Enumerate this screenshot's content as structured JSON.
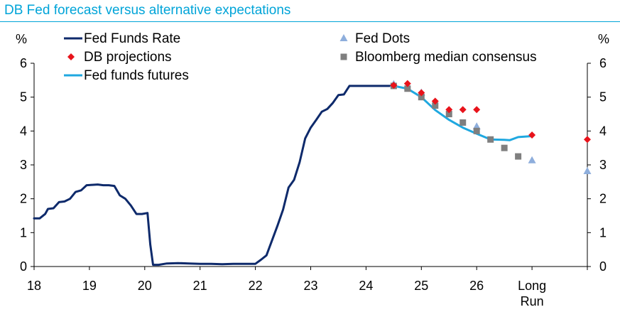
{
  "title": "DB Fed forecast versus alternative expectations",
  "chart_data": {
    "type": "line",
    "title": "DB Fed forecast versus alternative expectations",
    "left_axis_unit": "%",
    "right_axis_unit": "%",
    "y_ticks": [
      "0",
      "1",
      "2",
      "3",
      "4",
      "5",
      "6"
    ],
    "ylim": [
      0,
      6
    ],
    "x_ticks": [
      {
        "x": 18,
        "label": "18"
      },
      {
        "x": 19,
        "label": "19"
      },
      {
        "x": 20,
        "label": "20"
      },
      {
        "x": 21,
        "label": "21"
      },
      {
        "x": 22,
        "label": "22"
      },
      {
        "x": 23,
        "label": "23"
      },
      {
        "x": 24,
        "label": "24"
      },
      {
        "x": 25,
        "label": "25"
      },
      {
        "x": 26,
        "label": "26"
      },
      {
        "x": 27,
        "label": "Long Run"
      }
    ],
    "xlim": [
      18,
      28
    ],
    "grid": false,
    "legend": [
      {
        "name": "Fed Funds Rate",
        "marker": "line",
        "color": "#0e2a6b"
      },
      {
        "name": "Fed Dots",
        "marker": "triangle",
        "color": "#8eaedc"
      },
      {
        "name": "DB projections",
        "marker": "diamond",
        "color": "#e8131b"
      },
      {
        "name": "Bloomberg median consensus",
        "marker": "square",
        "color": "#7f7f7f"
      },
      {
        "name": "Fed funds futures",
        "marker": "line",
        "color": "#1fa8e0"
      }
    ],
    "series": [
      {
        "name": "Fed Funds Rate",
        "type": "line",
        "color": "#0e2a6b",
        "x": [
          18.0,
          18.1,
          18.2,
          18.25,
          18.35,
          18.45,
          18.55,
          18.65,
          18.75,
          18.85,
          18.95,
          19.05,
          19.15,
          19.25,
          19.35,
          19.45,
          19.55,
          19.65,
          19.75,
          19.85,
          19.95,
          20.05,
          20.1,
          20.15,
          20.25,
          20.4,
          20.6,
          20.8,
          21.0,
          21.2,
          21.4,
          21.6,
          21.8,
          22.0,
          22.1,
          22.2,
          22.3,
          22.4,
          22.5,
          22.6,
          22.7,
          22.8,
          22.9,
          23.0,
          23.1,
          23.2,
          23.3,
          23.4,
          23.5,
          23.6,
          23.7,
          23.9,
          24.1,
          24.3,
          24.5
        ],
        "y": [
          1.42,
          1.42,
          1.55,
          1.7,
          1.72,
          1.9,
          1.92,
          2.0,
          2.2,
          2.25,
          2.4,
          2.41,
          2.42,
          2.4,
          2.4,
          2.38,
          2.1,
          2.0,
          1.8,
          1.55,
          1.55,
          1.58,
          0.65,
          0.05,
          0.05,
          0.09,
          0.1,
          0.09,
          0.08,
          0.08,
          0.07,
          0.08,
          0.08,
          0.08,
          0.2,
          0.33,
          0.77,
          1.21,
          1.68,
          2.33,
          2.56,
          3.08,
          3.78,
          4.1,
          4.33,
          4.57,
          4.65,
          4.83,
          5.06,
          5.08,
          5.33,
          5.33,
          5.33,
          5.33,
          5.33
        ]
      },
      {
        "name": "Fed funds futures",
        "type": "line",
        "color": "#1fa8e0",
        "x": [
          24.5,
          24.75,
          25.0,
          25.25,
          25.5,
          25.75,
          26.0,
          26.25,
          26.5,
          26.6,
          26.75,
          27.0
        ],
        "y": [
          5.33,
          5.25,
          5.0,
          4.62,
          4.33,
          4.1,
          3.92,
          3.75,
          3.74,
          3.73,
          3.82,
          3.85
        ]
      },
      {
        "name": "DB projections",
        "type": "scatter",
        "marker": "diamond",
        "color": "#e8131b",
        "x": [
          24.5,
          24.75,
          25.0,
          25.25,
          25.5,
          25.75,
          26.0,
          27.0,
          28.0
        ],
        "y": [
          5.35,
          5.4,
          5.13,
          4.88,
          4.63,
          4.63,
          4.63,
          3.88,
          3.75
        ]
      },
      {
        "name": "Bloomberg median consensus",
        "type": "scatter",
        "marker": "square",
        "color": "#7f7f7f",
        "x": [
          24.5,
          24.75,
          25.0,
          25.25,
          25.5,
          25.75,
          26.0,
          26.25,
          26.5,
          26.75
        ],
        "y": [
          5.33,
          5.25,
          5.0,
          4.75,
          4.5,
          4.25,
          4.0,
          3.75,
          3.5,
          3.25
        ]
      },
      {
        "name": "Fed Dots",
        "type": "scatter",
        "marker": "triangle",
        "color": "#8eaedc",
        "x": [
          24.5,
          25.0,
          26.0,
          27.0,
          28.0
        ],
        "y": [
          5.38,
          5.13,
          4.13,
          3.13,
          2.81
        ]
      }
    ]
  }
}
